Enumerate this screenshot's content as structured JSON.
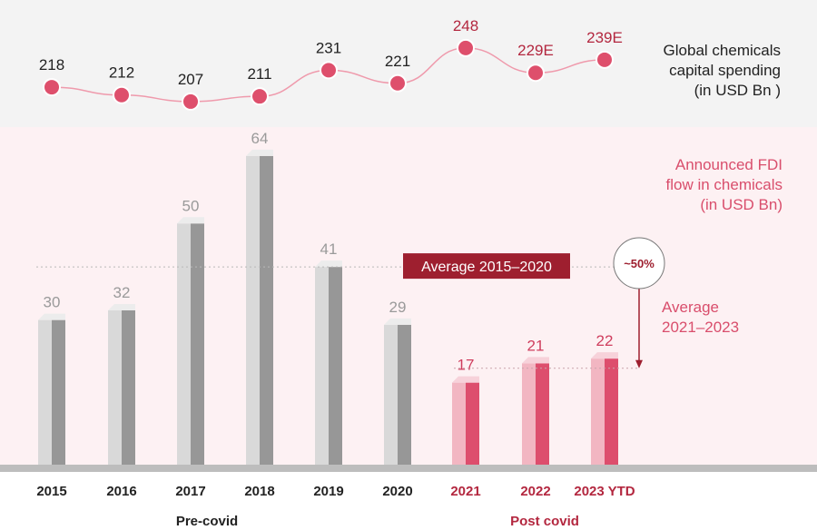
{
  "chart_data": [
    {
      "type": "line",
      "title": "Global chemicals capital spending (in USD Bn )",
      "title_lines": [
        "Global chemicals",
        "capital spending",
        "(in USD Bn )"
      ],
      "categories": [
        "2015",
        "2016",
        "2017",
        "2018",
        "2019",
        "2020",
        "2021",
        "2022",
        "2023 YTD"
      ],
      "values": [
        218,
        212,
        207,
        211,
        231,
        221,
        248,
        229,
        239
      ],
      "value_labels": [
        "218",
        "212",
        "207",
        "211",
        "231",
        "221",
        "248",
        "229E",
        "239E"
      ],
      "colors": {
        "dot": "#de4f6c",
        "line": "#ef9aac",
        "label_pre": "#222222",
        "label_post": "#b3273f"
      }
    },
    {
      "type": "bar",
      "title": "Announced FDI flow in chemicals (in USD Bn)",
      "title_lines": [
        "Announced FDI",
        "flow in chemicals",
        "(in USD Bn)"
      ],
      "categories": [
        "2015",
        "2016",
        "2017",
        "2018",
        "2019",
        "2020",
        "2021",
        "2022",
        "2023 YTD"
      ],
      "values": [
        30,
        32,
        50,
        64,
        41,
        29,
        17,
        21,
        22
      ],
      "ylim": [
        0,
        70
      ],
      "groups": [
        {
          "label": "Pre-covid",
          "categories": [
            "2015",
            "2016",
            "2017",
            "2018",
            "2019",
            "2020"
          ]
        },
        {
          "label": "Post covid",
          "categories": [
            "2021",
            "2022",
            "2023 YTD"
          ]
        }
      ],
      "annotations": {
        "average_pre": {
          "label": "Average 2015–2020",
          "value": 41
        },
        "average_post": {
          "label_lines": [
            "Average",
            "2021–2023"
          ],
          "value": 20
        },
        "change": "~50%"
      },
      "colors": {
        "pre_front": "#d9d9d9",
        "pre_side": "#979797",
        "pre_top": "#ececec",
        "pre_label": "#9a9a9a",
        "post_front": "#f2b6c2",
        "post_side": "#dd4e6d",
        "post_top": "#f7d2da",
        "post_label": "#cf3d5d",
        "avg_box": "#9e1f2f",
        "title": "#d94e6c",
        "axis_post": "#b3273f",
        "baseline": "#bdbdbd"
      }
    }
  ]
}
